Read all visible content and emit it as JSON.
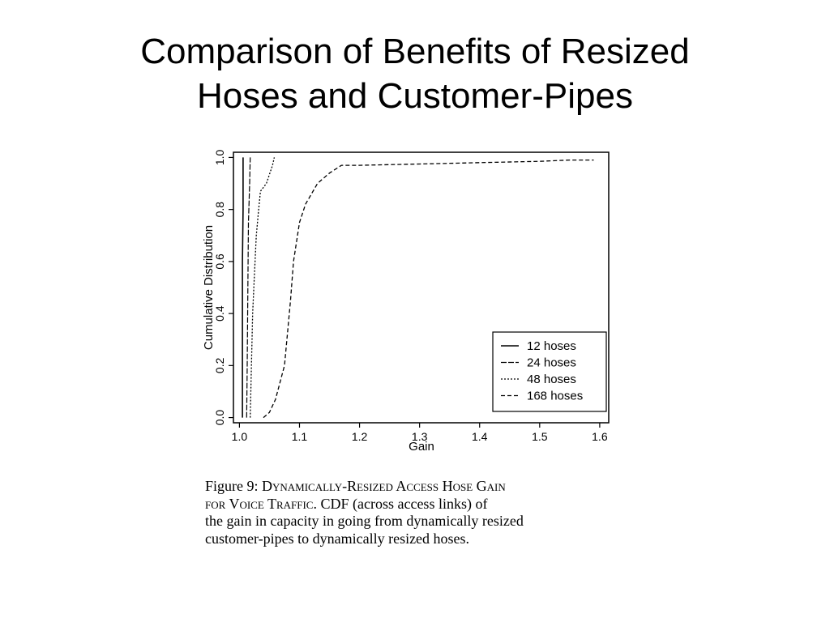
{
  "slide": {
    "title_line1": "Comparison of Benefits of Resized",
    "title_line2": "Hoses and Customer-Pipes"
  },
  "chart_data": {
    "type": "line",
    "xlabel": "Gain",
    "ylabel": "Cumulative Distribution",
    "xlim": [
      0.99,
      1.615
    ],
    "ylim": [
      -0.02,
      1.02
    ],
    "xticks": [
      1.0,
      1.1,
      1.2,
      1.3,
      1.4,
      1.5,
      1.6
    ],
    "xtick_labels": [
      "1.0",
      "1.1",
      "1.2",
      "1.3",
      "1.4",
      "1.5",
      "1.6"
    ],
    "yticks": [
      0.0,
      0.2,
      0.4,
      0.6,
      0.8,
      1.0
    ],
    "ytick_labels": [
      "0.0",
      "0.2",
      "0.4",
      "0.6",
      "0.8",
      "1.0"
    ],
    "grid": false,
    "legend_position": "bottom-right",
    "series": [
      {
        "name": "12 hoses",
        "dash": "solid",
        "x": [
          1.005,
          1.005,
          1.006,
          1.006
        ],
        "y": [
          0.0,
          0.6,
          0.8,
          1.0
        ]
      },
      {
        "name": "24 hoses",
        "dash": "long-short",
        "x": [
          1.012,
          1.013,
          1.014,
          1.015,
          1.017,
          1.018
        ],
        "y": [
          0.0,
          0.2,
          0.5,
          0.75,
          0.9,
          1.0
        ]
      },
      {
        "name": "48 hoses",
        "dash": "dotted",
        "x": [
          1.018,
          1.02,
          1.022,
          1.025,
          1.028,
          1.032,
          1.035,
          1.045,
          1.055,
          1.058
        ],
        "y": [
          0.0,
          0.2,
          0.4,
          0.55,
          0.7,
          0.8,
          0.87,
          0.9,
          0.97,
          1.0
        ]
      },
      {
        "name": "168 hoses",
        "dash": "dashed",
        "x": [
          1.04,
          1.05,
          1.06,
          1.075,
          1.085,
          1.09,
          1.1,
          1.11,
          1.12,
          1.13,
          1.15,
          1.17,
          1.2,
          1.3,
          1.4,
          1.5,
          1.55,
          1.59
        ],
        "y": [
          0.0,
          0.02,
          0.07,
          0.2,
          0.45,
          0.6,
          0.75,
          0.82,
          0.86,
          0.9,
          0.94,
          0.97,
          0.97,
          0.975,
          0.98,
          0.985,
          0.99,
          0.99
        ]
      }
    ]
  },
  "caption": {
    "figure_label": "Figure 9:",
    "caption_title_line1": "Dynamically-Resized Access Hose Gain",
    "caption_title_line2a": "for Voice Traffic",
    "caption_text_line2": ".  CDF (across access links) of",
    "caption_text_line3": "the gain in capacity in going from dynamically resized",
    "caption_text_line4": "customer-pipes to dynamically resized hoses."
  }
}
